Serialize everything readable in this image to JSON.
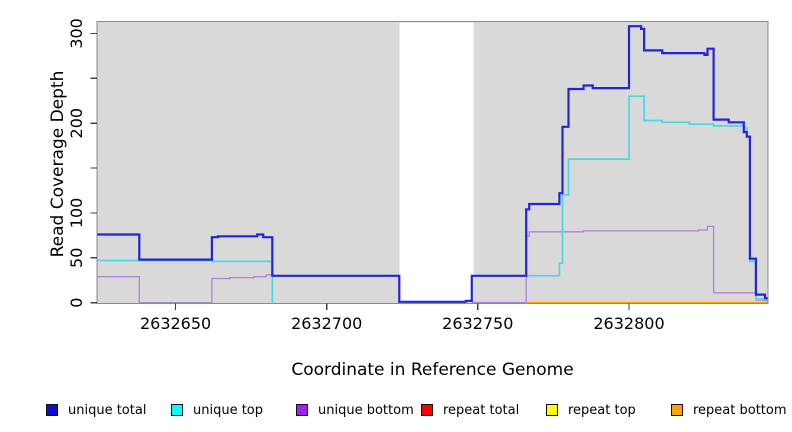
{
  "chart_data": {
    "type": "line",
    "step": true,
    "title": "",
    "xlabel": "Coordinate in Reference Genome",
    "ylabel": "Read Coverage Depth",
    "xlim": [
      2632624,
      2632846
    ],
    "ylim": [
      0,
      313
    ],
    "grid": false,
    "legend_position": "bottom",
    "plot_bg_color": "#d9d9d9",
    "border_color": "#8a8a8a",
    "tick_color": "#404040",
    "gap_band": {
      "x0": 2632724,
      "x1": 2632748.5,
      "color": "#ffffff"
    },
    "x_ticks": [
      {
        "value": 2632650,
        "label": "2632650"
      },
      {
        "value": 2632700,
        "label": "2632700"
      },
      {
        "value": 2632750,
        "label": "2632750"
      },
      {
        "value": 2632800,
        "label": "2632800"
      }
    ],
    "y_ticks": [
      {
        "value": 0,
        "label": "0"
      },
      {
        "value": 50,
        "label": "50"
      },
      {
        "value": 100,
        "label": "100"
      },
      {
        "value": 150,
        "label": ""
      },
      {
        "value": 200,
        "label": "200"
      },
      {
        "value": 250,
        "label": ""
      },
      {
        "value": 300,
        "label": "300"
      }
    ],
    "draw_order": [
      3,
      4,
      5,
      2,
      1,
      0
    ],
    "series": [
      {
        "name": "unique total",
        "color": "#2323de",
        "legend_fill": "#0d0dd6",
        "width": 2.2,
        "points": [
          [
            2632624,
            76
          ],
          [
            2632638,
            48
          ],
          [
            2632662,
            73
          ],
          [
            2632664,
            74
          ],
          [
            2632677,
            76
          ],
          [
            2632679,
            73
          ],
          [
            2632682,
            30
          ],
          [
            2632724,
            1
          ],
          [
            2632746,
            2
          ],
          [
            2632748,
            30
          ],
          [
            2632766,
            104
          ],
          [
            2632767,
            110
          ],
          [
            2632777,
            122
          ],
          [
            2632778,
            196
          ],
          [
            2632780,
            238
          ],
          [
            2632785,
            242
          ],
          [
            2632788,
            239
          ],
          [
            2632800,
            308
          ],
          [
            2632804,
            305
          ],
          [
            2632805,
            281
          ],
          [
            2632811,
            278
          ],
          [
            2632825,
            276
          ],
          [
            2632826,
            283
          ],
          [
            2632828,
            204
          ],
          [
            2632833,
            201
          ],
          [
            2632838,
            190
          ],
          [
            2632839,
            185
          ],
          [
            2632840,
            49
          ],
          [
            2632842,
            9
          ],
          [
            2632845,
            5
          ],
          [
            2632846,
            5
          ]
        ]
      },
      {
        "name": "unique top",
        "color": "#49d7e6",
        "legend_fill": "#00ffff",
        "width": 1.7,
        "points": [
          [
            2632624,
            47
          ],
          [
            2632662,
            46
          ],
          [
            2632682,
            0
          ],
          [
            2632724,
            null
          ],
          [
            2632748,
            30
          ],
          [
            2632777,
            44
          ],
          [
            2632778,
            120
          ],
          [
            2632780,
            160
          ],
          [
            2632800,
            230
          ],
          [
            2632805,
            203
          ],
          [
            2632811,
            201
          ],
          [
            2632820,
            199
          ],
          [
            2632828,
            197
          ],
          [
            2632838,
            195
          ],
          [
            2632839,
            185
          ],
          [
            2632840,
            46
          ],
          [
            2632842,
            4
          ],
          [
            2632845,
            2
          ],
          [
            2632846,
            2
          ]
        ]
      },
      {
        "name": "unique bottom",
        "color": "#b87fd9",
        "legend_fill": "#a020f0",
        "width": 1.3,
        "points": [
          [
            2632624,
            29
          ],
          [
            2632638,
            0
          ],
          [
            2632662,
            27
          ],
          [
            2632668,
            28
          ],
          [
            2632676,
            29
          ],
          [
            2632680,
            31
          ],
          [
            2632682,
            30
          ],
          [
            2632724,
            null
          ],
          [
            2632748,
            0
          ],
          [
            2632766,
            74
          ],
          [
            2632767,
            79
          ],
          [
            2632785,
            80
          ],
          [
            2632823,
            81
          ],
          [
            2632826,
            85
          ],
          [
            2632828,
            11
          ],
          [
            2632842,
            3
          ],
          [
            2632846,
            3
          ]
        ]
      },
      {
        "name": "repeat total",
        "color": "#e00000",
        "legend_fill": "#ff0000",
        "width": 1.2,
        "points": [
          [
            2632624,
            0
          ],
          [
            2632724,
            null
          ],
          [
            2632748,
            0
          ],
          [
            2632846,
            0
          ]
        ]
      },
      {
        "name": "repeat top",
        "color": "#f5f500",
        "legend_fill": "#ffff00",
        "width": 1.2,
        "points": [
          [
            2632624,
            0
          ],
          [
            2632724,
            null
          ],
          [
            2632748,
            0
          ],
          [
            2632846,
            0
          ]
        ]
      },
      {
        "name": "repeat bottom",
        "color": "#ffa500",
        "legend_fill": "#ffa500",
        "width": 1.7,
        "points": [
          [
            2632624,
            0
          ],
          [
            2632724,
            null
          ],
          [
            2632748,
            0
          ],
          [
            2632846,
            0
          ]
        ]
      }
    ]
  }
}
